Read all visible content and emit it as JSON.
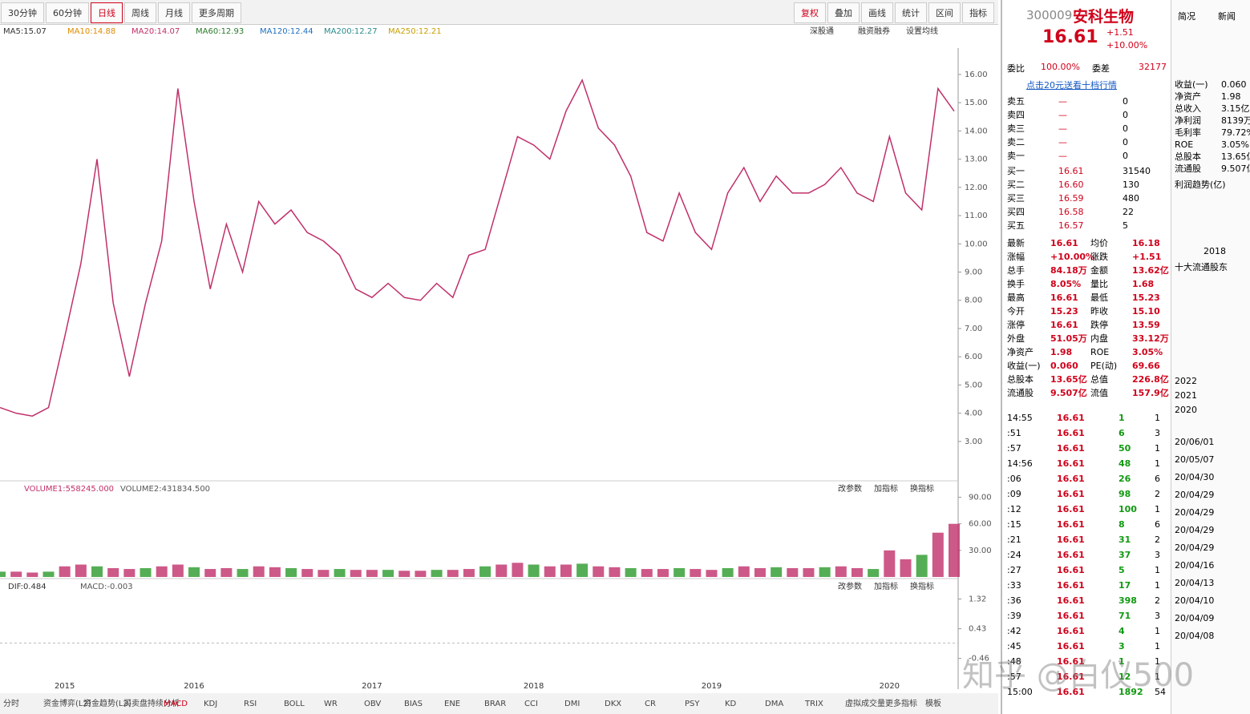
{
  "toolbar": {
    "periods": [
      "30分钟",
      "60分钟",
      "日线",
      "周线",
      "月线",
      "更多周期"
    ],
    "actions": [
      "复权",
      "叠加",
      "画线",
      "统计",
      "区间",
      "指标"
    ]
  },
  "ma_legend": [
    "MA5:15.07",
    "MA10:14.88",
    "MA20:14.07",
    "MA60:12.93",
    "MA120:12.44",
    "MA200:12.27",
    "MA250:12.21"
  ],
  "chart_links": [
    "深股通",
    "融资融券",
    "设置均线"
  ],
  "chart_data": {
    "type": "line",
    "name": "安科生物",
    "categories": [
      null,
      null,
      null,
      null,
      "2015",
      null,
      null,
      null,
      null,
      null,
      null,
      null,
      "2016",
      null,
      null,
      null,
      null,
      null,
      null,
      null,
      null,
      null,
      null,
      "2017",
      null,
      null,
      null,
      null,
      null,
      null,
      null,
      null,
      null,
      "2018",
      null,
      null,
      null,
      null,
      null,
      null,
      null,
      null,
      null,
      null,
      "2019",
      null,
      null,
      null,
      null,
      null,
      null,
      null,
      null,
      null,
      null,
      "2020",
      null,
      null,
      null,
      null
    ],
    "series": [
      {
        "color": "#c0306a",
        "values": [
          4.2,
          4.0,
          3.9,
          4.2,
          6.7,
          9.3,
          13.0,
          7.9,
          5.3,
          7.9,
          10.1,
          15.5,
          11.5,
          8.4,
          10.7,
          9.0,
          11.5,
          10.7,
          11.2,
          10.4,
          10.1,
          9.6,
          8.4,
          8.1,
          8.6,
          8.1,
          8.0,
          8.6,
          8.1,
          9.6,
          9.8,
          11.8,
          13.8,
          13.5,
          13.0,
          14.7,
          15.8,
          14.1,
          13.5,
          12.4,
          10.4,
          10.1,
          11.8,
          10.4,
          9.8,
          11.8,
          12.7,
          11.5,
          12.4,
          11.8,
          11.8,
          12.1,
          12.7,
          11.8,
          11.5,
          13.8,
          11.8,
          11.2,
          15.5,
          14.7
        ]
      }
    ],
    "ylim": [
      1.89,
      16.65
    ],
    "yticks": [
      {
        "value": 3,
        "label": "3.00"
      },
      {
        "value": 4,
        "label": "4.00"
      },
      {
        "value": 5,
        "label": "5.00"
      },
      {
        "value": 6,
        "label": "6.00"
      },
      {
        "value": 7,
        "label": "7.00"
      },
      {
        "value": 8,
        "label": "8.00"
      },
      {
        "value": 9,
        "label": "9.00"
      },
      {
        "value": 10,
        "label": "10.00"
      },
      {
        "value": 11,
        "label": "11.00"
      },
      {
        "value": 12,
        "label": "12.00"
      },
      {
        "value": 13,
        "label": "13.00"
      },
      {
        "value": 14,
        "label": "14.00"
      },
      {
        "value": 15,
        "label": "15.00"
      },
      {
        "value": 16,
        "label": "16.00"
      }
    ],
    "volume": {
      "legend": [
        "VOLUME1:558245.000",
        "VOLUME2:431834.500"
      ],
      "color": "#c0306a",
      "values": [
        6,
        6,
        5,
        6,
        12,
        14,
        12,
        10,
        9,
        10,
        12,
        14,
        11,
        9,
        10,
        9,
        12,
        11,
        10,
        9,
        8,
        9,
        8,
        8,
        8,
        7,
        7,
        8,
        8,
        9,
        12,
        14,
        16,
        14,
        12,
        14,
        15,
        12,
        11,
        10,
        9,
        9,
        10,
        9,
        8,
        10,
        12,
        10,
        11,
        10,
        10,
        11,
        12,
        10,
        9,
        30,
        20,
        25,
        50,
        60
      ],
      "ylim": [
        0,
        95
      ],
      "yticks": [
        {
          "value": 30,
          "label": "30.00"
        },
        {
          "value": 60,
          "label": "60.00"
        },
        {
          "value": 90,
          "label": "90.00"
        }
      ]
    },
    "macd": {
      "legend": [
        "DIF:0.484",
        "MACD:-0.003"
      ],
      "ylim": [
        -0.9,
        1.5
      ],
      "yticks": [
        {
          "value": -0.46,
          "label": "-0.46"
        },
        {
          "value": 0.43,
          "label": "0.43"
        },
        {
          "value": 1.32,
          "label": "1.32"
        }
      ]
    }
  },
  "panel_buttons": [
    "改参数",
    "加指标",
    "换指标"
  ],
  "bottom_tabs": [
    "分时",
    "资金博弈(L2)",
    "资金趋势(L2)",
    "买卖盘持续分析",
    "MACD",
    "KDJ",
    "RSI",
    "BOLL",
    "WR",
    "OBV",
    "BIAS",
    "ENE",
    "BRAR",
    "CCI",
    "DMI",
    "DKX",
    "CR",
    "PSY",
    "KD",
    "DMA",
    "TRIX",
    "虚拟成交量",
    "更多指标",
    "模板"
  ],
  "quote": {
    "code": "300009",
    "name": "安科生物",
    "price": "16.61",
    "change": "+1.51",
    "pct": "+10.00%",
    "ratio_label": "委比",
    "ratio": "100.00%",
    "diff_label": "委差",
    "diff": "32177",
    "promo": "点击20元送看十档行情",
    "sell": [
      [
        "卖五",
        "—",
        "0"
      ],
      [
        "卖四",
        "—",
        "0"
      ],
      [
        "卖三",
        "—",
        "0"
      ],
      [
        "卖二",
        "—",
        "0"
      ],
      [
        "卖一",
        "—",
        "0"
      ]
    ],
    "buy": [
      [
        "买一",
        "16.61",
        "31540"
      ],
      [
        "买二",
        "16.60",
        "130"
      ],
      [
        "买三",
        "16.59",
        "480"
      ],
      [
        "买四",
        "16.58",
        "22"
      ],
      [
        "买五",
        "16.57",
        "5"
      ]
    ],
    "stats": [
      [
        "最新",
        "16.61",
        "均价",
        "16.18"
      ],
      [
        "涨幅",
        "+10.00%",
        "涨跌",
        "+1.51"
      ],
      [
        "总手",
        "84.18万",
        "金额",
        "13.62亿"
      ],
      [
        "换手",
        "8.05%",
        "量比",
        "1.68"
      ],
      [
        "最高",
        "16.61",
        "最低",
        "15.23"
      ],
      [
        "今开",
        "15.23",
        "昨收",
        "15.10"
      ],
      [
        "涨停",
        "16.61",
        "跌停",
        "13.59"
      ],
      [
        "外盘",
        "51.05万",
        "内盘",
        "33.12万"
      ],
      [
        "净资产",
        "1.98",
        "ROE",
        "3.05%"
      ],
      [
        "收益(一)",
        "0.060",
        "PE(动)",
        "69.66"
      ],
      [
        "总股本",
        "13.65亿",
        "总值",
        "226.8亿"
      ],
      [
        "流通股",
        "9.507亿",
        "流值",
        "157.9亿"
      ]
    ],
    "ticks": [
      [
        "14:55",
        "16.61",
        "1",
        "1"
      ],
      [
        ":51",
        "16.61",
        "6",
        "3"
      ],
      [
        ":57",
        "16.61",
        "50",
        "1"
      ],
      [
        "14:56",
        "16.61",
        "48",
        "1"
      ],
      [
        ":06",
        "16.61",
        "26",
        "6"
      ],
      [
        ":09",
        "16.61",
        "98",
        "2"
      ],
      [
        ":12",
        "16.61",
        "100",
        "1"
      ],
      [
        ":15",
        "16.61",
        "8",
        "6"
      ],
      [
        ":21",
        "16.61",
        "31",
        "2"
      ],
      [
        ":24",
        "16.61",
        "37",
        "3"
      ],
      [
        ":27",
        "16.61",
        "5",
        "1"
      ],
      [
        ":33",
        "16.61",
        "17",
        "1"
      ],
      [
        ":36",
        "16.61",
        "398",
        "2"
      ],
      [
        ":39",
        "16.61",
        "71",
        "3"
      ],
      [
        ":42",
        "16.61",
        "4",
        "1"
      ],
      [
        ":45",
        "16.61",
        "3",
        "1"
      ],
      [
        ":48",
        "16.61",
        "1",
        "1"
      ],
      [
        ":57",
        "16.61",
        "12",
        "1"
      ],
      [
        "15:00",
        "16.61",
        "1892",
        "54"
      ]
    ]
  },
  "side": {
    "tabs": [
      "简况",
      "新闻"
    ],
    "fund": [
      [
        "收益(一)",
        "0.060"
      ],
      [
        "净资产",
        "1.98"
      ],
      [
        "总收入",
        "3.15亿"
      ],
      [
        "净利润",
        "8139万"
      ],
      [
        "毛利率",
        "79.72%"
      ],
      [
        "ROE",
        "3.05%"
      ],
      [
        "总股本",
        "13.65亿"
      ],
      [
        "流通股",
        "9.507亿"
      ]
    ],
    "profit": "利润趋势(亿)",
    "year": "2018",
    "holders": "十大流通股东",
    "years": [
      "2022",
      "2021",
      "2020"
    ],
    "dates": [
      "20/06/01",
      "20/05/07",
      "20/04/30",
      "20/04/29",
      "20/04/29",
      "20/04/29",
      "20/04/29",
      "20/04/16",
      "20/04/13",
      "20/04/10",
      "20/04/09",
      "20/04/08"
    ]
  },
  "watermark": "知乎 @白仪500"
}
